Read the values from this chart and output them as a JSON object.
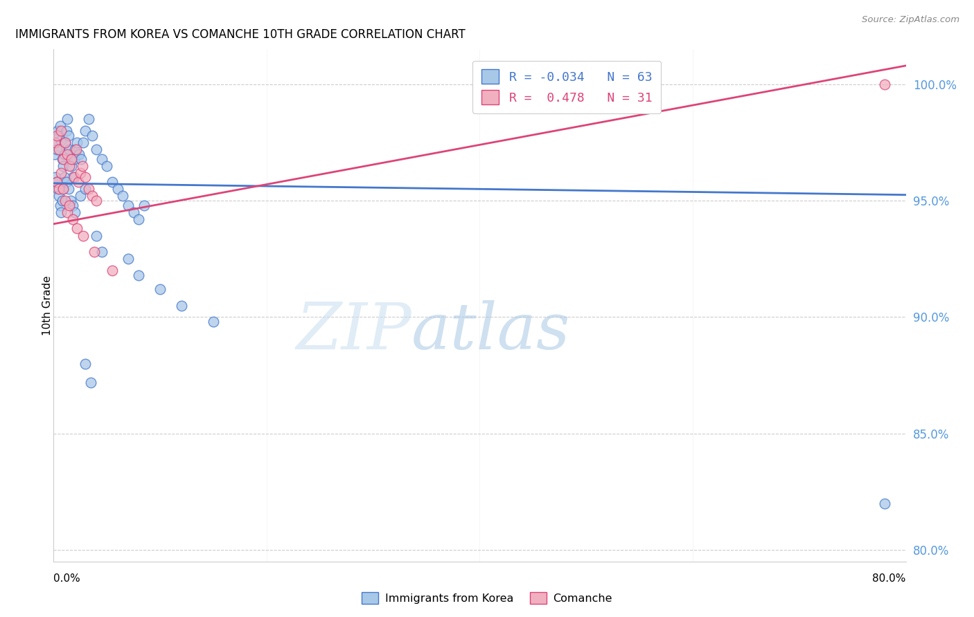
{
  "title": "IMMIGRANTS FROM KOREA VS COMANCHE 10TH GRADE CORRELATION CHART",
  "source": "Source: ZipAtlas.com",
  "ylabel": "10th Grade",
  "yaxis_labels": [
    "100.0%",
    "95.0%",
    "90.0%",
    "85.0%",
    "80.0%"
  ],
  "yaxis_values": [
    1.0,
    0.95,
    0.9,
    0.85,
    0.8
  ],
  "xlim": [
    0.0,
    0.8
  ],
  "ylim": [
    0.795,
    1.015
  ],
  "legend_r_blue": "-0.034",
  "legend_n_blue": "63",
  "legend_r_pink": "0.478",
  "legend_n_pink": "31",
  "blue_color": "#a8c8e8",
  "pink_color": "#f0b0c0",
  "line_blue": "#4477cc",
  "line_pink": "#dd4477",
  "watermark_zip": "ZIP",
  "watermark_atlas": "atlas",
  "blue_x": [
    0.001,
    0.002,
    0.003,
    0.004,
    0.005,
    0.006,
    0.007,
    0.008,
    0.009,
    0.01,
    0.011,
    0.012,
    0.013,
    0.014,
    0.015,
    0.016,
    0.017,
    0.018,
    0.019,
    0.02,
    0.022,
    0.024,
    0.026,
    0.028,
    0.03,
    0.033,
    0.036,
    0.04,
    0.045,
    0.05,
    0.002,
    0.003,
    0.004,
    0.005,
    0.006,
    0.007,
    0.008,
    0.009,
    0.01,
    0.012,
    0.014,
    0.016,
    0.018,
    0.02,
    0.025,
    0.03,
    0.055,
    0.06,
    0.065,
    0.07,
    0.075,
    0.08,
    0.085,
    0.04,
    0.045,
    0.07,
    0.08,
    0.1,
    0.12,
    0.15,
    0.03,
    0.035,
    0.78
  ],
  "blue_y": [
    0.97,
    0.975,
    0.972,
    0.98,
    0.978,
    0.982,
    0.976,
    0.968,
    0.965,
    0.97,
    0.975,
    0.98,
    0.985,
    0.978,
    0.972,
    0.968,
    0.965,
    0.96,
    0.968,
    0.972,
    0.975,
    0.97,
    0.968,
    0.975,
    0.98,
    0.985,
    0.978,
    0.972,
    0.968,
    0.965,
    0.96,
    0.958,
    0.955,
    0.952,
    0.948,
    0.945,
    0.95,
    0.955,
    0.96,
    0.958,
    0.955,
    0.95,
    0.948,
    0.945,
    0.952,
    0.955,
    0.958,
    0.955,
    0.952,
    0.948,
    0.945,
    0.942,
    0.948,
    0.935,
    0.928,
    0.925,
    0.918,
    0.912,
    0.905,
    0.898,
    0.88,
    0.872,
    0.82
  ],
  "pink_x": [
    0.001,
    0.003,
    0.005,
    0.007,
    0.009,
    0.011,
    0.013,
    0.015,
    0.017,
    0.019,
    0.021,
    0.023,
    0.025,
    0.027,
    0.03,
    0.033,
    0.036,
    0.04,
    0.003,
    0.005,
    0.007,
    0.009,
    0.011,
    0.013,
    0.015,
    0.018,
    0.022,
    0.028,
    0.038,
    0.055,
    0.78
  ],
  "pink_y": [
    0.975,
    0.978,
    0.972,
    0.98,
    0.968,
    0.975,
    0.97,
    0.965,
    0.968,
    0.96,
    0.972,
    0.958,
    0.962,
    0.965,
    0.96,
    0.955,
    0.952,
    0.95,
    0.958,
    0.955,
    0.962,
    0.955,
    0.95,
    0.945,
    0.948,
    0.942,
    0.938,
    0.935,
    0.928,
    0.92,
    1.0
  ],
  "blue_trendline_x": [
    0.0,
    0.8
  ],
  "blue_trendline_y": [
    0.9575,
    0.9525
  ],
  "pink_trendline_x": [
    0.0,
    0.8
  ],
  "pink_trendline_y": [
    0.94,
    1.008
  ],
  "xtick_positions": [
    0.0,
    0.2,
    0.4,
    0.6,
    0.8
  ],
  "xtick_labels": [
    "0.0%",
    "",
    "",
    "",
    "80.0%"
  ]
}
